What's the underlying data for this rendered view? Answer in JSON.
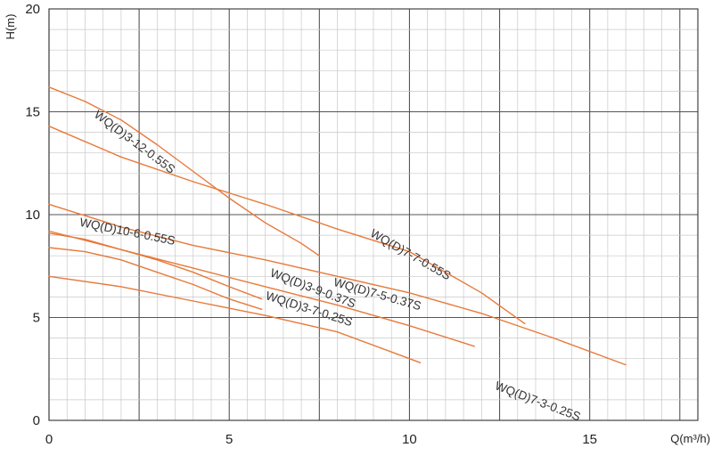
{
  "chart_data": {
    "type": "line",
    "title": "",
    "xlabel": "Q(m³/h)",
    "ylabel": "H(m)",
    "xlim": [
      0,
      18
    ],
    "ylim": [
      0,
      20
    ],
    "x_ticks": [
      0,
      5,
      10,
      15
    ],
    "y_ticks": [
      0,
      5,
      10,
      15,
      20
    ],
    "grid": true,
    "colors": {
      "line": "#e8793a",
      "grid_major": "#555555",
      "grid_minor": "#c8c8c8",
      "frame": "#444444"
    },
    "series": [
      {
        "name": "WQ(D)3-12-0.55S",
        "x": [
          0,
          1,
          2,
          3,
          4,
          5,
          6,
          7,
          7.5
        ],
        "y": [
          16.2,
          15.5,
          14.6,
          13.4,
          12.1,
          10.8,
          9.6,
          8.6,
          8.0
        ]
      },
      {
        "name": "WQ(D)7-7-0.55S",
        "x": [
          0,
          2,
          4,
          6,
          8,
          10,
          12,
          13.2
        ],
        "y": [
          14.3,
          12.8,
          11.6,
          10.5,
          9.3,
          8.2,
          6.2,
          4.7
        ]
      },
      {
        "name": "WQ(D)10-6-0.55S",
        "x": [
          0,
          2,
          4,
          6,
          8,
          10,
          12,
          14,
          16
        ],
        "y": [
          10.5,
          9.4,
          8.5,
          7.8,
          7.0,
          6.2,
          5.2,
          4.0,
          2.7
        ]
      },
      {
        "name": "WQ(D)7-5-0.37S",
        "x": [
          0,
          2,
          4,
          6,
          8,
          10,
          11.8
        ],
        "y": [
          9.2,
          8.3,
          7.4,
          6.5,
          5.6,
          4.6,
          3.6
        ]
      },
      {
        "name": "WQ(D)3-9-0.37S",
        "x": [
          0,
          1,
          2,
          3,
          4,
          5,
          5.9
        ],
        "y": [
          9.1,
          8.8,
          8.3,
          7.8,
          7.2,
          6.5,
          5.9
        ]
      },
      {
        "name": "WQ(D)3-7-0.25S",
        "x": [
          0,
          1,
          2,
          3,
          4,
          5,
          5.9
        ],
        "y": [
          8.4,
          8.2,
          7.8,
          7.2,
          6.6,
          5.9,
          5.4
        ]
      },
      {
        "name": "WQ(D)7-3-0.25S",
        "x": [
          0,
          2,
          4,
          6,
          8,
          10,
          10.3
        ],
        "y": [
          7.0,
          6.5,
          5.8,
          5.1,
          4.3,
          3.0,
          2.8
        ]
      }
    ]
  }
}
